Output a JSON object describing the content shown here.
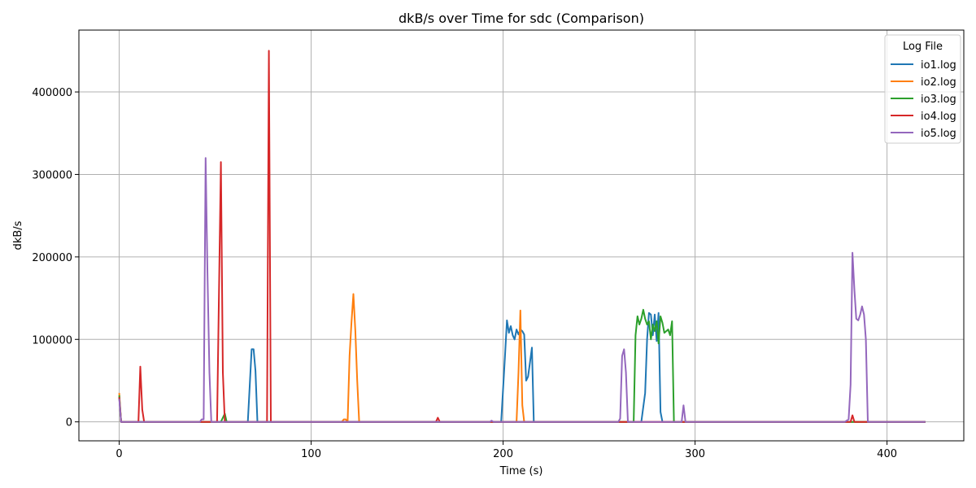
{
  "chart_data": {
    "type": "line",
    "title": "dkB/s over Time for sdc (Comparison)",
    "xlabel": "Time (s)",
    "ylabel": "dkB/s",
    "xlim": [
      -21,
      440
    ],
    "ylim": [
      -23000,
      475000
    ],
    "xticks": [
      0,
      100,
      200,
      300,
      400
    ],
    "yticks": [
      0,
      100000,
      200000,
      300000,
      400000
    ],
    "grid": true,
    "legend": {
      "title": "Log File",
      "placement": "top-right"
    },
    "series": [
      {
        "name": "io1.log",
        "color": "#1f77b4",
        "points": [
          [
            0,
            30000
          ],
          [
            1,
            0
          ],
          [
            67,
            0
          ],
          [
            69,
            88000
          ],
          [
            70,
            88000
          ],
          [
            71,
            62000
          ],
          [
            72,
            0
          ],
          [
            199,
            0
          ],
          [
            201,
            80000
          ],
          [
            202,
            123000
          ],
          [
            203,
            108000
          ],
          [
            204,
            116000
          ],
          [
            205,
            105000
          ],
          [
            206,
            100000
          ],
          [
            207,
            112000
          ],
          [
            208,
            106000
          ],
          [
            209,
            112000
          ],
          [
            210,
            110000
          ],
          [
            211,
            106000
          ],
          [
            212,
            50000
          ],
          [
            213,
            55000
          ],
          [
            214,
            72000
          ],
          [
            215,
            90000
          ],
          [
            216,
            0
          ],
          [
            272,
            0
          ],
          [
            274,
            35000
          ],
          [
            275,
            100000
          ],
          [
            276,
            132000
          ],
          [
            277,
            130000
          ],
          [
            278,
            105000
          ],
          [
            279,
            130000
          ],
          [
            280,
            98000
          ],
          [
            281,
            132000
          ],
          [
            282,
            12000
          ],
          [
            283,
            0
          ],
          [
            420,
            0
          ]
        ]
      },
      {
        "name": "io2.log",
        "color": "#ff7f0e",
        "points": [
          [
            0,
            35000
          ],
          [
            1,
            0
          ],
          [
            116,
            0
          ],
          [
            117,
            3000
          ],
          [
            118,
            3000
          ],
          [
            119,
            0
          ],
          [
            120,
            80000
          ],
          [
            121,
            120000
          ],
          [
            122,
            155000
          ],
          [
            123,
            110000
          ],
          [
            124,
            50000
          ],
          [
            125,
            0
          ],
          [
            207,
            0
          ],
          [
            208,
            60000
          ],
          [
            209,
            135000
          ],
          [
            210,
            20000
          ],
          [
            211,
            0
          ],
          [
            420,
            0
          ]
        ]
      },
      {
        "name": "io3.log",
        "color": "#2ca02c",
        "points": [
          [
            0,
            32000
          ],
          [
            1,
            0
          ],
          [
            53,
            0
          ],
          [
            55,
            10000
          ],
          [
            56,
            0
          ],
          [
            268,
            0
          ],
          [
            269,
            105000
          ],
          [
            270,
            128000
          ],
          [
            271,
            118000
          ],
          [
            272,
            125000
          ],
          [
            273,
            136000
          ],
          [
            274,
            125000
          ],
          [
            275,
            118000
          ],
          [
            276,
            122000
          ],
          [
            277,
            100000
          ],
          [
            278,
            118000
          ],
          [
            279,
            110000
          ],
          [
            280,
            122000
          ],
          [
            281,
            95000
          ],
          [
            282,
            128000
          ],
          [
            283,
            120000
          ],
          [
            284,
            108000
          ],
          [
            285,
            110000
          ],
          [
            286,
            112000
          ],
          [
            287,
            105000
          ],
          [
            288,
            122000
          ],
          [
            289,
            0
          ],
          [
            420,
            0
          ]
        ]
      },
      {
        "name": "io4.log",
        "color": "#d62728",
        "points": [
          [
            0,
            30000
          ],
          [
            1,
            0
          ],
          [
            10,
            0
          ],
          [
            11,
            67000
          ],
          [
            12,
            15000
          ],
          [
            13,
            0
          ],
          [
            51,
            0
          ],
          [
            53,
            315000
          ],
          [
            54,
            60000
          ],
          [
            55,
            0
          ],
          [
            77,
            0
          ],
          [
            78,
            450000
          ],
          [
            79,
            0
          ],
          [
            165,
            0
          ],
          [
            166,
            5000
          ],
          [
            167,
            0
          ],
          [
            381,
            0
          ],
          [
            382,
            8000
          ],
          [
            383,
            0
          ],
          [
            420,
            0
          ]
        ]
      },
      {
        "name": "io5.log",
        "color": "#9467bd",
        "points": [
          [
            0,
            28000
          ],
          [
            1,
            0
          ],
          [
            42,
            0
          ],
          [
            43,
            3000
          ],
          [
            44,
            3000
          ],
          [
            45,
            320000
          ],
          [
            46,
            180000
          ],
          [
            47,
            60000
          ],
          [
            48,
            0
          ],
          [
            193,
            0
          ],
          [
            194,
            1500
          ],
          [
            195,
            0
          ],
          [
            260,
            0
          ],
          [
            261,
            4000
          ],
          [
            262,
            80000
          ],
          [
            263,
            88000
          ],
          [
            264,
            60000
          ],
          [
            265,
            0
          ],
          [
            293,
            0
          ],
          [
            294,
            20000
          ],
          [
            295,
            0
          ],
          [
            378,
            0
          ],
          [
            380,
            3000
          ],
          [
            381,
            45000
          ],
          [
            382,
            205000
          ],
          [
            383,
            160000
          ],
          [
            384,
            125000
          ],
          [
            385,
            123000
          ],
          [
            386,
            130000
          ],
          [
            387,
            140000
          ],
          [
            388,
            130000
          ],
          [
            389,
            100000
          ],
          [
            390,
            0
          ],
          [
            420,
            0
          ]
        ]
      }
    ]
  }
}
